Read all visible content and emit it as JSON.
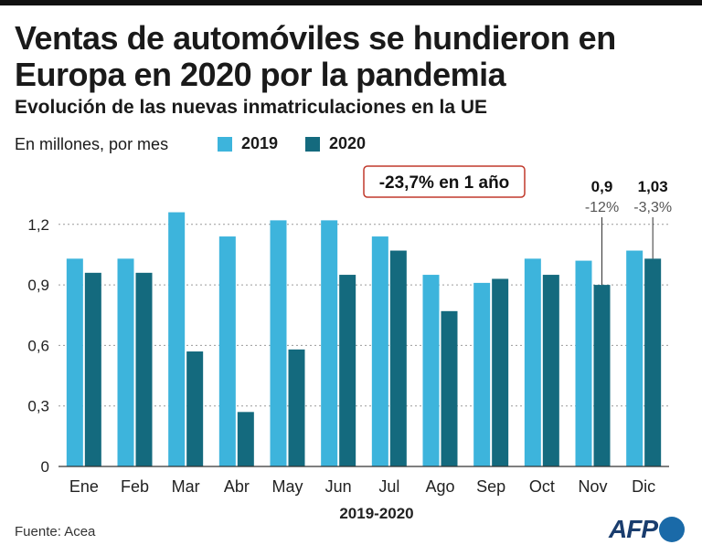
{
  "header": {
    "title": "Ventas de automóviles se hundieron en Europa en 2020 por la pandemia",
    "subtitle": "Evolución de las nuevas inmatriculaciones en la UE",
    "units": "En millones, por mes"
  },
  "colors": {
    "series2019": "#3db4dc",
    "series2020": "#146a7e",
    "badge_border": "#c0392b"
  },
  "chart_data": {
    "type": "bar",
    "categories": [
      "Ene",
      "Feb",
      "Mar",
      "Abr",
      "May",
      "Jun",
      "Jul",
      "Ago",
      "Sep",
      "Oct",
      "Nov",
      "Dic"
    ],
    "series": [
      {
        "name": "2019",
        "values": [
          1.03,
          1.03,
          1.26,
          1.14,
          1.22,
          1.22,
          1.14,
          0.95,
          0.91,
          1.03,
          1.02,
          1.07
        ]
      },
      {
        "name": "2020",
        "values": [
          0.96,
          0.96,
          0.57,
          0.27,
          0.58,
          0.95,
          1.07,
          0.77,
          0.93,
          0.95,
          0.9,
          1.03
        ]
      }
    ],
    "ylim": [
      0,
      1.2
    ],
    "yticks": [
      {
        "value": 0,
        "label": "0"
      },
      {
        "value": 0.3,
        "label": "0,3"
      },
      {
        "value": 0.6,
        "label": "0,6"
      },
      {
        "value": 0.9,
        "label": "0,9"
      },
      {
        "value": 1.2,
        "label": "1,2"
      }
    ],
    "xlabel": "2019-2020",
    "ylabel": "En millones, por mes",
    "annotations": {
      "yearly_change": "-23,7% en 1 año",
      "nov": {
        "category": "Nov",
        "value": 0.9,
        "value_label": "0,9",
        "change_label": "-12%"
      },
      "dic": {
        "category": "Dic",
        "value": 1.03,
        "value_label": "1,03",
        "change_label": "-3,3%"
      }
    }
  },
  "footer": {
    "source": "Fuente: Acea",
    "logo": "AFP"
  }
}
